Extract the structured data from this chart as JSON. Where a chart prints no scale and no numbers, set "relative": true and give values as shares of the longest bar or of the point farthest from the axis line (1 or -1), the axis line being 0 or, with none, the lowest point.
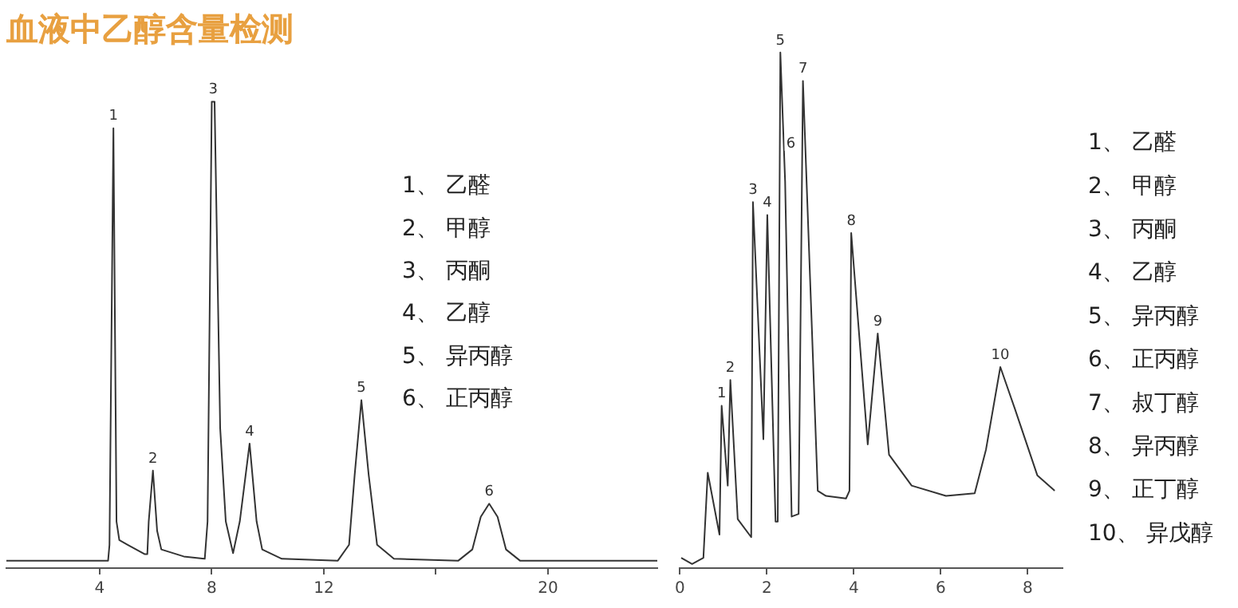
{
  "chart_data": [
    {
      "type": "line",
      "title": "血液中乙醇含量检测",
      "relative": true,
      "grid": false,
      "legend": false,
      "marker": "none",
      "tick_labels": "x",
      "xlim": [
        0.67,
        23.9
      ],
      "xticks": [
        4,
        8,
        12,
        {
          "value": 16,
          "label": null
        },
        20
      ],
      "x": [
        0.67,
        4.3,
        4.35,
        4.49,
        4.6,
        4.7,
        5.0,
        5.6,
        5.7,
        5.75,
        5.9,
        6.05,
        6.2,
        7.0,
        7.75,
        7.85,
        8.0,
        8.1,
        8.3,
        8.5,
        8.76,
        9.0,
        9.35,
        9.6,
        9.8,
        10.5,
        12.5,
        12.9,
        13.1,
        13.34,
        13.6,
        13.9,
        14.5,
        16.8,
        17.3,
        17.6,
        17.9,
        18.2,
        18.5,
        19.0,
        23.9
      ],
      "series": [
        {
          "color": "#333333",
          "values": [
            0.016,
            0.016,
            0.05,
            0.943,
            0.1,
            0.06,
            0.05,
            0.03,
            0.03,
            0.1,
            0.209,
            0.08,
            0.04,
            0.025,
            0.02,
            0.1,
            1,
            1,
            0.3,
            0.1,
            0.032,
            0.1,
            0.267,
            0.1,
            0.04,
            0.02,
            0.016,
            0.05,
            0.2,
            0.36,
            0.2,
            0.05,
            0.02,
            0.016,
            0.04,
            0.11,
            0.138,
            0.11,
            0.04,
            0.016,
            0.016
          ]
        }
      ],
      "annotations": [
        {
          "text": "1",
          "x": 4.49,
          "y": 0.943
        },
        {
          "text": "2",
          "x": 5.9,
          "y": 0.209
        },
        {
          "text": "3",
          "x": 8.05,
          "y": 1
        },
        {
          "text": "4",
          "x": 9.35,
          "y": 0.267
        },
        {
          "text": "5",
          "x": 13.34,
          "y": 0.36
        },
        {
          "text": "6",
          "x": 17.9,
          "y": 0.138
        },
        "1、 乙醛",
        "2、 甲醇",
        "3、 丙酮",
        "4、 乙醇",
        "5、 异丙醇",
        "6、 正丙醇"
      ]
    },
    {
      "type": "line",
      "relative": true,
      "grid": false,
      "legend": false,
      "marker": "none",
      "tick_labels": "x",
      "xlim": [
        0,
        8.8
      ],
      "xticks": [
        0,
        2,
        4,
        6,
        8
      ],
      "x": [
        0.03,
        0.28,
        0.54,
        0.64,
        0.91,
        0.96,
        1.1,
        1.16,
        1.33,
        1.64,
        1.68,
        1.92,
        2.01,
        2.2,
        2.25,
        2.31,
        2.42,
        2.57,
        2.73,
        2.83,
        3.17,
        3.36,
        3.82,
        3.9,
        3.94,
        4.32,
        4.55,
        4.81,
        5.33,
        6.12,
        6.78,
        7.04,
        7.37,
        7.7,
        8.22,
        8.62
      ],
      "series": [
        {
          "color": "#333333",
          "values": [
            0.02,
            0.008,
            0.02,
            0.185,
            0.065,
            0.315,
            0.16,
            0.365,
            0.095,
            0.06,
            0.71,
            0.25,
            0.685,
            0.09,
            0.09,
            1,
            0.75,
            0.1,
            0.105,
            0.945,
            0.15,
            0.14,
            0.135,
            0.15,
            0.65,
            0.24,
            0.455,
            0.22,
            0.16,
            0.14,
            0.145,
            0.23,
            0.39,
            0.31,
            0.18,
            0.15
          ]
        }
      ],
      "annotations": [
        {
          "text": "1",
          "x": 0.96,
          "y": 0.315
        },
        {
          "text": "2",
          "x": 1.16,
          "y": 0.365
        },
        {
          "text": "3",
          "x": 1.68,
          "y": 0.71
        },
        {
          "text": "4",
          "x": 2.01,
          "y": 0.685
        },
        {
          "text": "5",
          "x": 2.31,
          "y": 1
        },
        {
          "text": "6",
          "x": 2.55,
          "y": 0.8
        },
        {
          "text": "7",
          "x": 2.83,
          "y": 0.945
        },
        {
          "text": "8",
          "x": 3.94,
          "y": 0.65
        },
        {
          "text": "9",
          "x": 4.55,
          "y": 0.455
        },
        {
          "text": "10",
          "x": 7.37,
          "y": 0.39
        },
        "1、 乙醛",
        "2、 甲醇",
        "3、 丙酮",
        "4、 乙醇",
        "5、 异丙醇",
        "6、 正丙醇",
        "7、 叔丁醇",
        "8、 异丙醇",
        "9、 正丁醇",
        "10、 异戊醇"
      ]
    }
  ]
}
